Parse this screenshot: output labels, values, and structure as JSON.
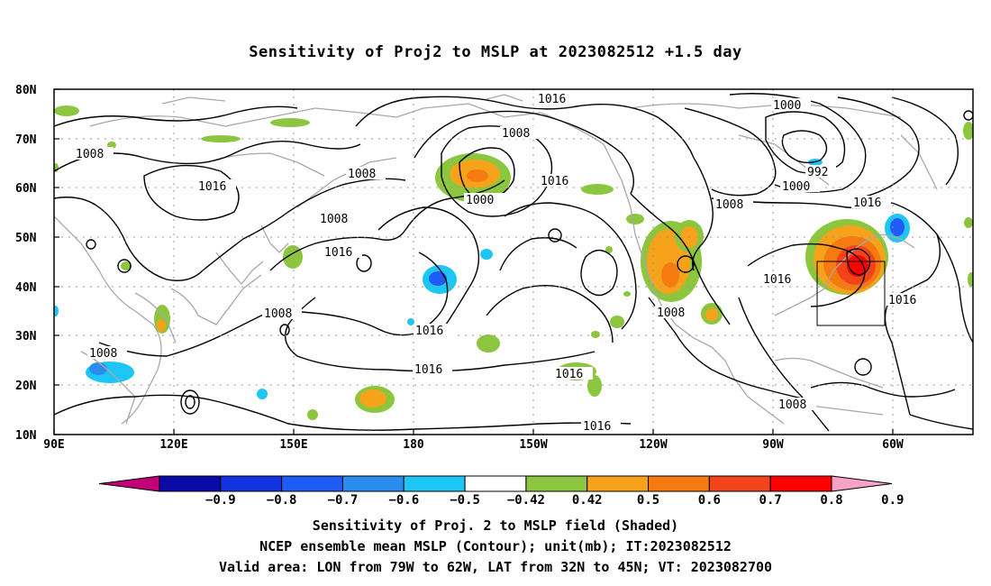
{
  "title": "Sensitivity of Proj2 to MSLP at 2023082512 +1.5 day",
  "captions": [
    "Sensitivity of Proj. 2 to MSLP field (Shaded)",
    "NCEP ensemble mean MSLP (Contour); unit(mb); IT:2023082512",
    "Valid area: LON from 79W to 62W, LAT from 32N to 45N; VT: 2023082700"
  ],
  "lat_labels": [
    "80N",
    "70N",
    "60N",
    "50N",
    "40N",
    "30N",
    "20N",
    "10N"
  ],
  "lon_labels": [
    "90E",
    "120E",
    "150E",
    "180",
    "150W",
    "120W",
    "90W",
    "60W"
  ],
  "colorbar": {
    "labels": [
      "-0.9",
      "-0.8",
      "-0.7",
      "-0.6",
      "-0.5",
      "-0.42",
      "0.42",
      "0.5",
      "0.6",
      "0.7",
      "0.8",
      "0.9"
    ],
    "colors": [
      "#c2007a",
      "#0a0aa8",
      "#1133e0",
      "#1e5cf5",
      "#2b8cf0",
      "#1ec6f5",
      "#ffffff",
      "#8cc63f",
      "#f7a21b",
      "#f57a10",
      "#f2431a",
      "#ff0000",
      "#f7a3c8"
    ]
  },
  "contour_labels": [
    "1016",
    "1008",
    "1000",
    "992",
    "1000",
    "1016",
    "1008",
    "1008",
    "1016",
    "1008",
    "1016",
    "1000",
    "1008",
    "1016",
    "1016",
    "1008",
    "1016",
    "1016",
    "1016",
    "1016",
    "1008",
    "1008",
    "1016",
    "1008"
  ],
  "valid_area": {
    "lon": [
      -79,
      -62
    ],
    "lat": [
      32,
      45
    ]
  }
}
